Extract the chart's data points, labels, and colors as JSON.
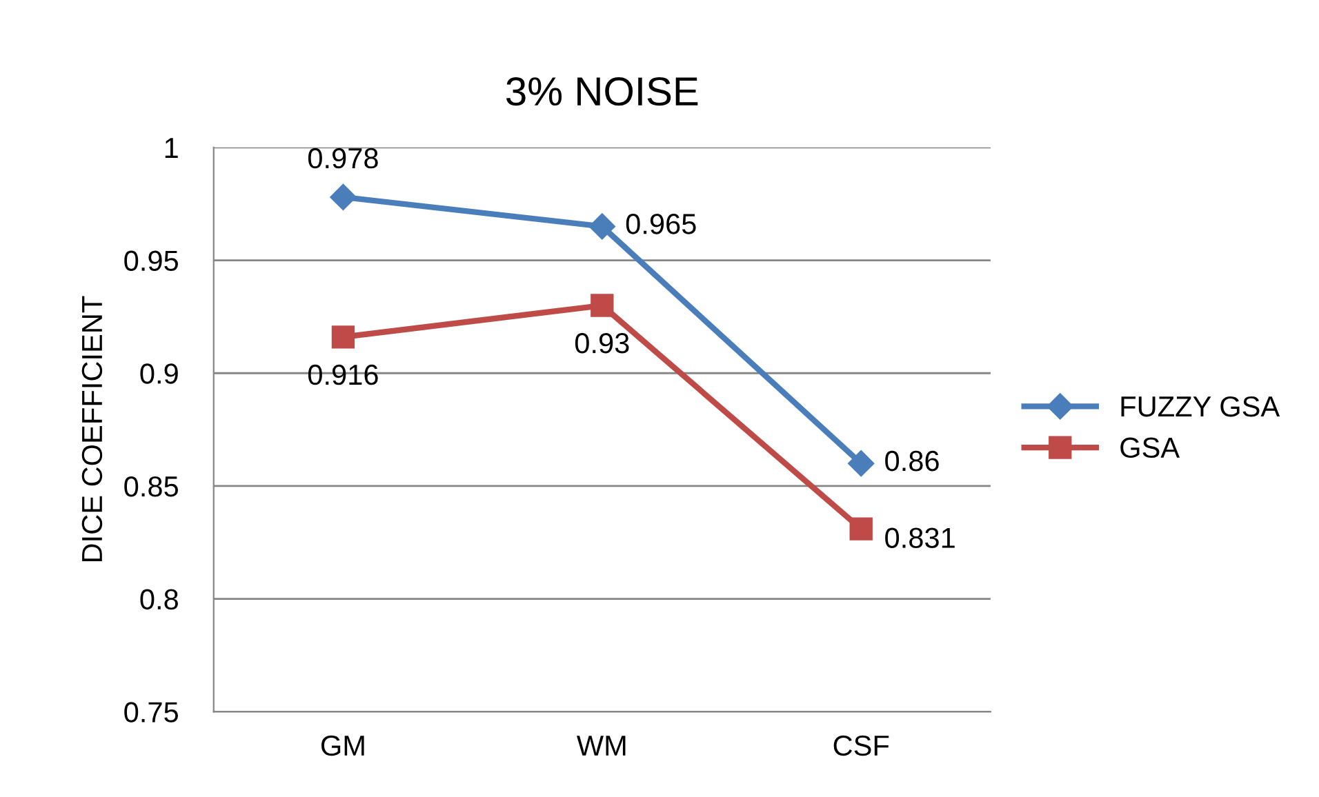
{
  "chart_data": {
    "type": "line",
    "title": "3% NOISE",
    "ylabel": "DICE COEFFICIENT",
    "categories": [
      "GM",
      "WM",
      "CSF"
    ],
    "series": [
      {
        "name": "FUZZY GSA",
        "color": "#4a7ebb",
        "marker": "diamond",
        "values": [
          0.978,
          0.965,
          0.86
        ]
      },
      {
        "name": "GSA",
        "color": "#be4b48",
        "marker": "square",
        "values": [
          0.916,
          0.93,
          0.831
        ]
      }
    ],
    "ylim": [
      0.75,
      1
    ],
    "yticks": [
      0.75,
      0.8,
      0.85,
      0.9,
      0.95,
      1
    ],
    "grid": "y",
    "legend": "right",
    "data_labels": true,
    "line_style": "solid"
  }
}
